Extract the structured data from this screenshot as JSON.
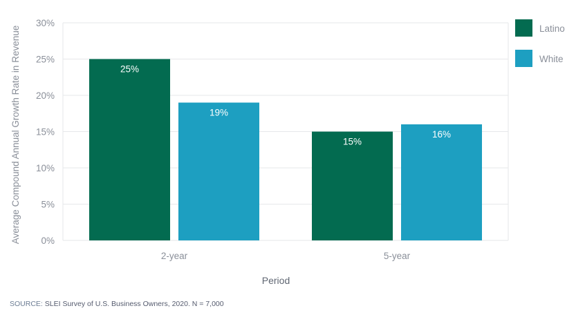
{
  "chart_data": {
    "type": "bar",
    "title": "",
    "xlabel": "Period",
    "ylabel": "Average Compound Annual Growth Rate in Revenue",
    "categories": [
      "2-year",
      "5-year"
    ],
    "series": [
      {
        "name": "Latino",
        "values": [
          25,
          15
        ],
        "labels": [
          "25%",
          "15%"
        ],
        "color": "#036b50"
      },
      {
        "name": "White",
        "values": [
          19,
          16
        ],
        "labels": [
          "19%",
          "16%"
        ],
        "color": "#1d9fc1"
      }
    ],
    "ylim": [
      0,
      30
    ],
    "yticks": [
      0,
      5,
      10,
      15,
      20,
      25,
      30
    ],
    "ytick_labels": [
      "0%",
      "5%",
      "10%",
      "15%",
      "20%",
      "25%",
      "30%"
    ],
    "grid": true,
    "legend": "top-right"
  },
  "source": {
    "label": "SOURCE:",
    "text": "SLEI Survey of U.S. Business Owners, 2020. N = 7,000"
  }
}
